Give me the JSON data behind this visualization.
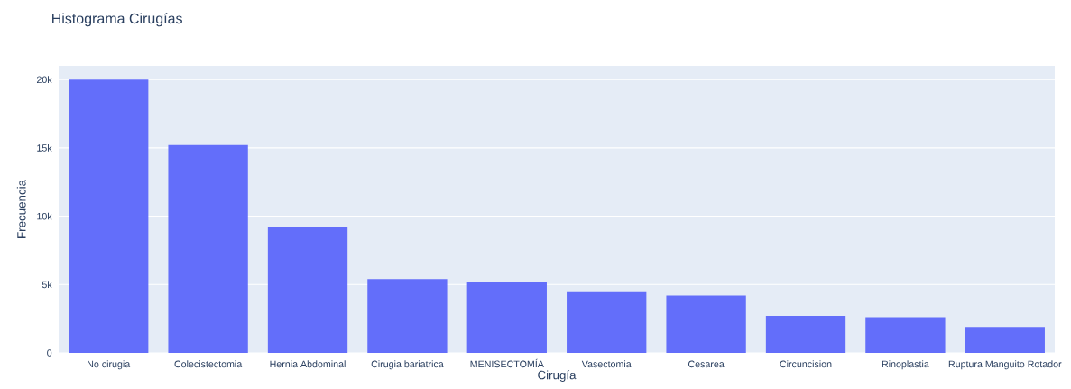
{
  "chart_data": {
    "type": "bar",
    "title": "Histograma Cirugías",
    "xlabel": "Cirugía",
    "ylabel": "Frecuencia",
    "categories": [
      "No cirugia",
      "Colecistectomia",
      "Hernia Abdominal",
      "Cirugia bariatrica",
      "MENISECTOMÍA",
      "Vasectomia",
      "Cesarea",
      "Circuncision",
      "Rinoplastia",
      "Ruptura Manguito Rotador"
    ],
    "values": [
      20000,
      15200,
      9200,
      5400,
      5200,
      4500,
      4200,
      2700,
      2600,
      1900
    ],
    "color": "#636efa",
    "ylim": [
      0,
      21000
    ],
    "yticks": [
      0,
      {
        "value": 5000,
        "label": "5k"
      },
      {
        "value": 10000,
        "label": "10k"
      },
      {
        "value": 15000,
        "label": "15k"
      },
      {
        "value": 20000,
        "label": "20k"
      }
    ],
    "grid": "y"
  }
}
